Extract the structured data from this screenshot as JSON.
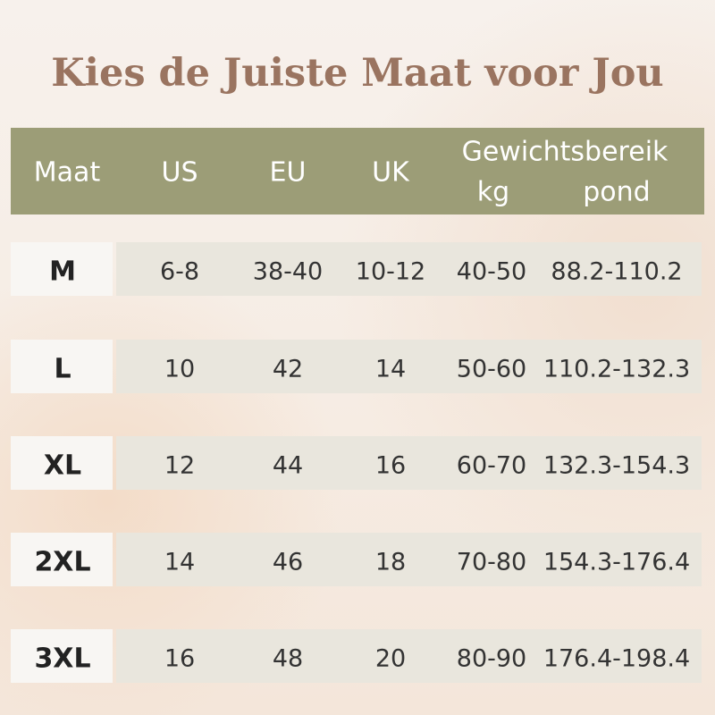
{
  "header": {
    "title": "Kies de Juiste Maat voor Jou"
  },
  "table": {
    "columns": [
      "Maat",
      "US",
      "EU",
      "UK"
    ],
    "weight_group": "Gewichtsbereik",
    "weight_columns": [
      "kg",
      "pond"
    ],
    "rows": [
      [
        "M",
        "6-8",
        "38-40",
        "10-12",
        "40-50",
        "88.2-110.2"
      ],
      [
        "L",
        "10",
        "42",
        "14",
        "50-60",
        "110.2-132.3"
      ],
      [
        "XL",
        "12",
        "44",
        "16",
        "60-70",
        "132.3-154.3"
      ],
      [
        "2XL",
        "14",
        "46",
        "18",
        "70-80",
        "154.3-176.4"
      ],
      [
        "3XL",
        "16",
        "48",
        "20",
        "80-90",
        "176.4-198.4"
      ]
    ]
  }
}
